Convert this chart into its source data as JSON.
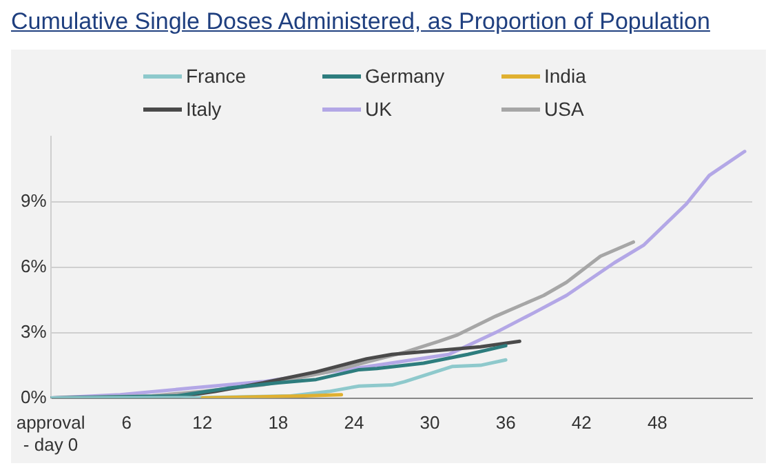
{
  "chart_data": {
    "type": "line",
    "title": "Cumulative Single Doses Administered, as Proportion of Population",
    "xlim": [
      0,
      55.5
    ],
    "xticks": [
      {
        "value": 0,
        "label": "approval - day 0"
      },
      6,
      12,
      18,
      24,
      30,
      36,
      42,
      48
    ],
    "ylim": [
      0,
      12
    ],
    "yticks": [
      {
        "value": 0,
        "label": "0%"
      },
      {
        "value": 3,
        "label": "3%"
      },
      {
        "value": 6,
        "label": "6%"
      },
      {
        "value": 9,
        "label": "9%"
      }
    ],
    "grid": "y",
    "legend": "top",
    "marker": "none",
    "line_style": "solid",
    "series": [
      {
        "name": "France",
        "color": "#8ec9cc",
        "x": [
          0,
          12,
          19,
          22,
          24.4,
          27,
          28,
          31.8,
          34,
          36
        ],
        "values": [
          0,
          0.02,
          0.1,
          0.3,
          0.55,
          0.6,
          0.75,
          1.45,
          1.5,
          1.75
        ]
      },
      {
        "name": "Germany",
        "color": "#2e7d7e",
        "x": [
          0,
          10,
          14,
          18,
          21,
          24.4,
          25.8,
          29.5,
          33,
          36
        ],
        "values": [
          0,
          0.1,
          0.45,
          0.7,
          0.85,
          1.3,
          1.35,
          1.6,
          2.0,
          2.4
        ]
      },
      {
        "name": "India",
        "color": "#e0b030",
        "x": [
          12,
          16,
          20,
          23
        ],
        "values": [
          0,
          0.05,
          0.1,
          0.15
        ]
      },
      {
        "name": "Italy",
        "color": "#4a4a4a",
        "x": [
          0,
          10,
          13,
          16.8,
          21,
          25,
          27,
          31,
          34,
          37.1
        ],
        "values": [
          0,
          0.05,
          0.3,
          0.7,
          1.2,
          1.8,
          2.0,
          2.2,
          2.35,
          2.6
        ]
      },
      {
        "name": "UK",
        "color": "#b3a7e6",
        "x": [
          0,
          5.5,
          11,
          16.8,
          20.2,
          25.8,
          31.5,
          35.2,
          38.2,
          40.8,
          44.6,
          46.9,
          50.3,
          52.1,
          54.9
        ],
        "values": [
          0,
          0.15,
          0.45,
          0.75,
          1.05,
          1.5,
          2.0,
          3.0,
          3.9,
          4.7,
          6.2,
          7.0,
          8.9,
          10.2,
          11.3
        ]
      },
      {
        "name": "USA",
        "color": "#a6a6a6",
        "x": [
          0,
          8,
          12,
          16.8,
          22,
          28,
          30.7,
          32.2,
          35.2,
          39,
          40.8,
          43.5,
          46.1
        ],
        "values": [
          0,
          0.1,
          0.3,
          0.6,
          1.2,
          2.1,
          2.6,
          2.9,
          3.75,
          4.7,
          5.3,
          6.5,
          7.15
        ]
      }
    ]
  }
}
